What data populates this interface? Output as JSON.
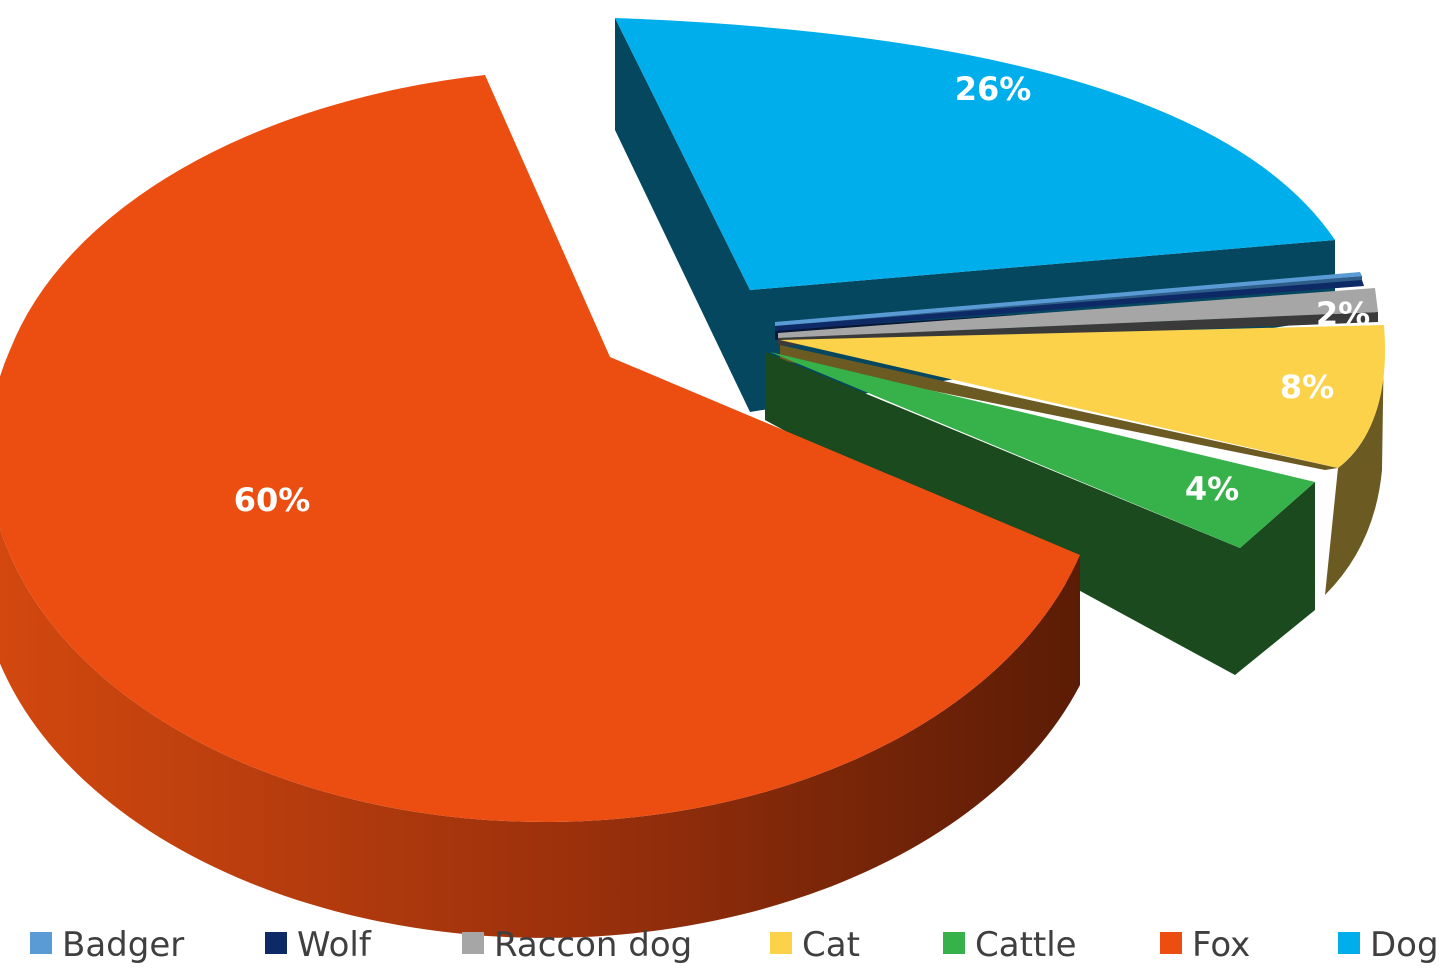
{
  "chart_data": {
    "type": "pie",
    "title": "",
    "style": "3d-exploded",
    "legend_position": "bottom",
    "slices": [
      {
        "name": "Badger",
        "value": 0.4,
        "color": "#5b9bd5",
        "side_color": "#2e5d8a",
        "label": ""
      },
      {
        "name": "Wolf",
        "value": 0.3,
        "color": "#0e2a66",
        "side_color": "#071636",
        "label": ""
      },
      {
        "name": "Raccon dog",
        "value": 2,
        "color": "#a6a6a6",
        "side_color": "#3a3a3a",
        "label": "2%"
      },
      {
        "name": "Cat",
        "value": 8,
        "color": "#fbd24a",
        "side_color": "#6b5a22",
        "label": "8%"
      },
      {
        "name": "Cattle",
        "value": 4,
        "color": "#37b14a",
        "side_color": "#1a4a1e",
        "label": "4%"
      },
      {
        "name": "Fox",
        "value": 60,
        "color": "#ec4e12",
        "side_color": "#9a300c",
        "label": "60%"
      },
      {
        "name": "Dog",
        "value": 26,
        "color": "#00aeec",
        "side_color": "#04475f",
        "label": "26%"
      }
    ]
  }
}
